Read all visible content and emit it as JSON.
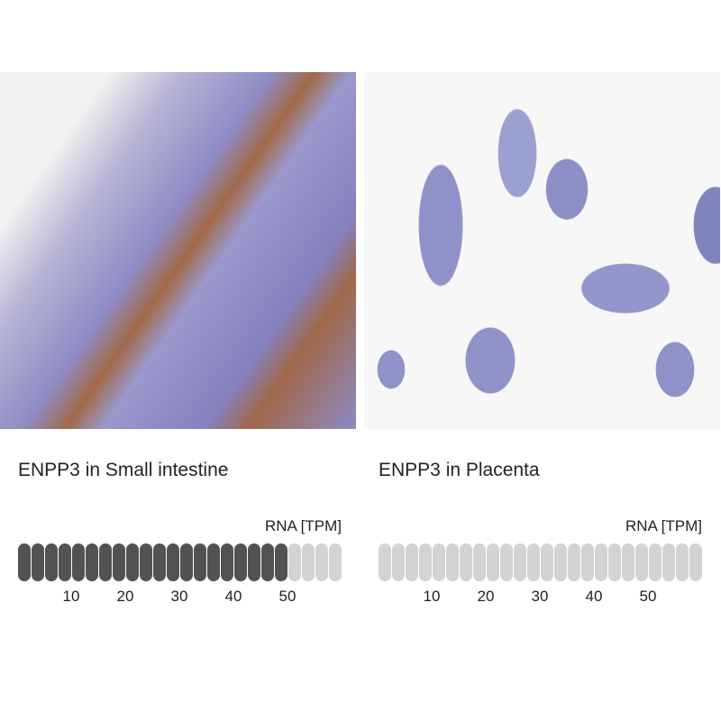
{
  "panels": [
    {
      "title": "ENPP3 in Small intestine",
      "rna_label": "RNA [TPM]",
      "segments_total": 24,
      "segments_filled": 20,
      "tpm_per_segment": 2.5,
      "value_tpm": 50,
      "ticks": [
        "10",
        "20",
        "30",
        "40",
        "50"
      ]
    },
    {
      "title": "ENPP3 in Placenta",
      "rna_label": "RNA [TPM]",
      "segments_total": 24,
      "segments_filled": 0,
      "tpm_per_segment": 2.5,
      "value_tpm": 0,
      "ticks": [
        "10",
        "20",
        "30",
        "40",
        "50"
      ]
    }
  ],
  "colors": {
    "filled": "#525252",
    "empty": "#d3d3d3",
    "stain_brown": "#a0684a",
    "stain_blue": "#8d8bc6"
  }
}
